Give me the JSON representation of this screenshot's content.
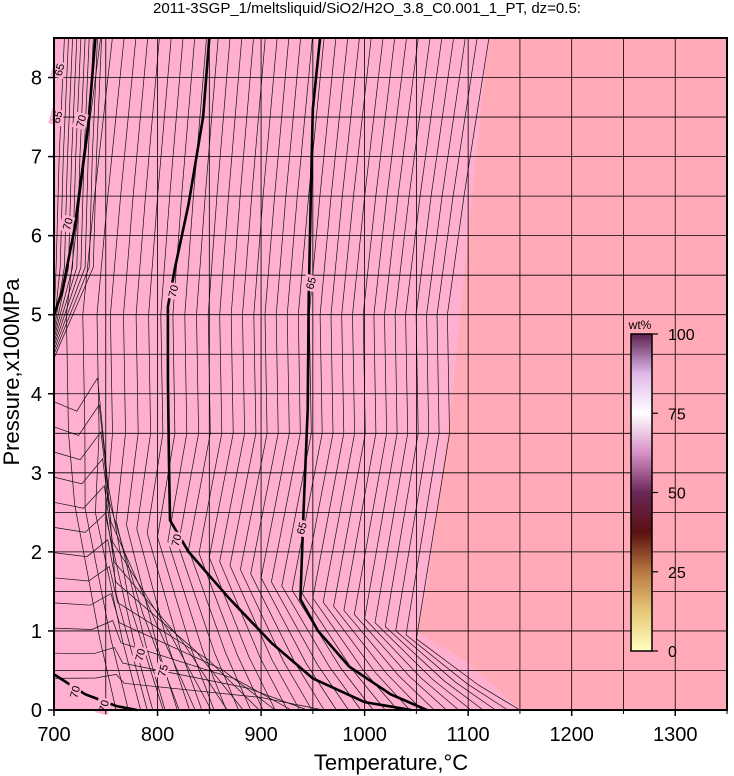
{
  "chart_data": {
    "type": "heatmap",
    "title": "2011-3SGP_1/meltsliquid/SiO2/H2O_3.8_C0.001_1_PT, dz=0.5:",
    "xlabel": "Temperature,°C",
    "ylabel": "Pressure,x100MPa",
    "xlim": [
      700,
      1350
    ],
    "ylim": [
      0,
      8.5
    ],
    "x_ticks": [
      "700",
      "800",
      "900",
      "1000",
      "1100",
      "1200",
      "1300"
    ],
    "y_ticks": [
      "0",
      "1",
      "2",
      "3",
      "4",
      "5",
      "6",
      "7",
      "8"
    ],
    "grid": true,
    "field_colors": {
      "low_temperature": "#ffb0d0",
      "high_temperature": "#ffaab6"
    },
    "contour_labels": [
      {
        "text": "65",
        "x": 705,
        "y": 8.1
      },
      {
        "text": "65",
        "x": 703,
        "y": 7.5
      },
      {
        "text": "70",
        "x": 726,
        "y": 7.45
      },
      {
        "text": "70",
        "x": 713,
        "y": 6.15
      },
      {
        "text": "70",
        "x": 815,
        "y": 5.3
      },
      {
        "text": "65",
        "x": 948,
        "y": 5.4
      },
      {
        "text": "65",
        "x": 939,
        "y": 2.3
      },
      {
        "text": "70",
        "x": 818,
        "y": 2.15
      },
      {
        "text": "70",
        "x": 783,
        "y": 0.7
      },
      {
        "text": "75",
        "x": 805,
        "y": 0.5
      },
      {
        "text": "70",
        "x": 720,
        "y": 0.23
      },
      {
        "text": "70",
        "x": 748,
        "y": 0.05
      }
    ],
    "bold_contours": [
      {
        "level": "70",
        "points": [
          [
            740,
            8.5
          ],
          [
            733,
            7.4
          ],
          [
            720,
            6.1
          ],
          [
            708,
            5.3
          ],
          [
            700,
            5.0
          ]
        ]
      },
      {
        "level": "70",
        "points": [
          [
            850,
            8.5
          ],
          [
            844,
            7.5
          ],
          [
            830,
            6.4
          ],
          [
            817,
            5.6
          ],
          [
            810,
            5.1
          ],
          [
            810,
            4.2
          ],
          [
            811,
            3.2
          ],
          [
            812,
            2.4
          ],
          [
            830,
            2.0
          ],
          [
            870,
            1.4
          ],
          [
            910,
            0.85
          ],
          [
            950,
            0.4
          ],
          [
            1000,
            0.1
          ],
          [
            1045,
            0.0
          ]
        ]
      },
      {
        "level": "65",
        "points": [
          [
            957,
            8.5
          ],
          [
            950,
            7.6
          ],
          [
            948,
            6.5
          ],
          [
            946,
            5.2
          ],
          [
            945,
            3.8
          ],
          [
            941,
            2.5
          ],
          [
            938,
            1.4
          ],
          [
            955,
            1.0
          ],
          [
            985,
            0.55
          ],
          [
            1025,
            0.2
          ],
          [
            1060,
            0.0
          ]
        ]
      },
      {
        "level": "70",
        "points": [
          [
            700,
            0.45
          ],
          [
            730,
            0.2
          ],
          [
            760,
            0.05
          ],
          [
            780,
            0.0
          ]
        ]
      }
    ],
    "colorbar": {
      "title": "wt%",
      "ticks": [
        "0",
        "25",
        "50",
        "75",
        "100"
      ],
      "range": [
        0,
        100
      ],
      "colors": [
        "#ffffc0",
        "#e8c878",
        "#b87840",
        "#5a1010",
        "#6a2858",
        "#d890c8",
        "#ffffff",
        "#e0b8e8",
        "#5a2050"
      ]
    }
  }
}
